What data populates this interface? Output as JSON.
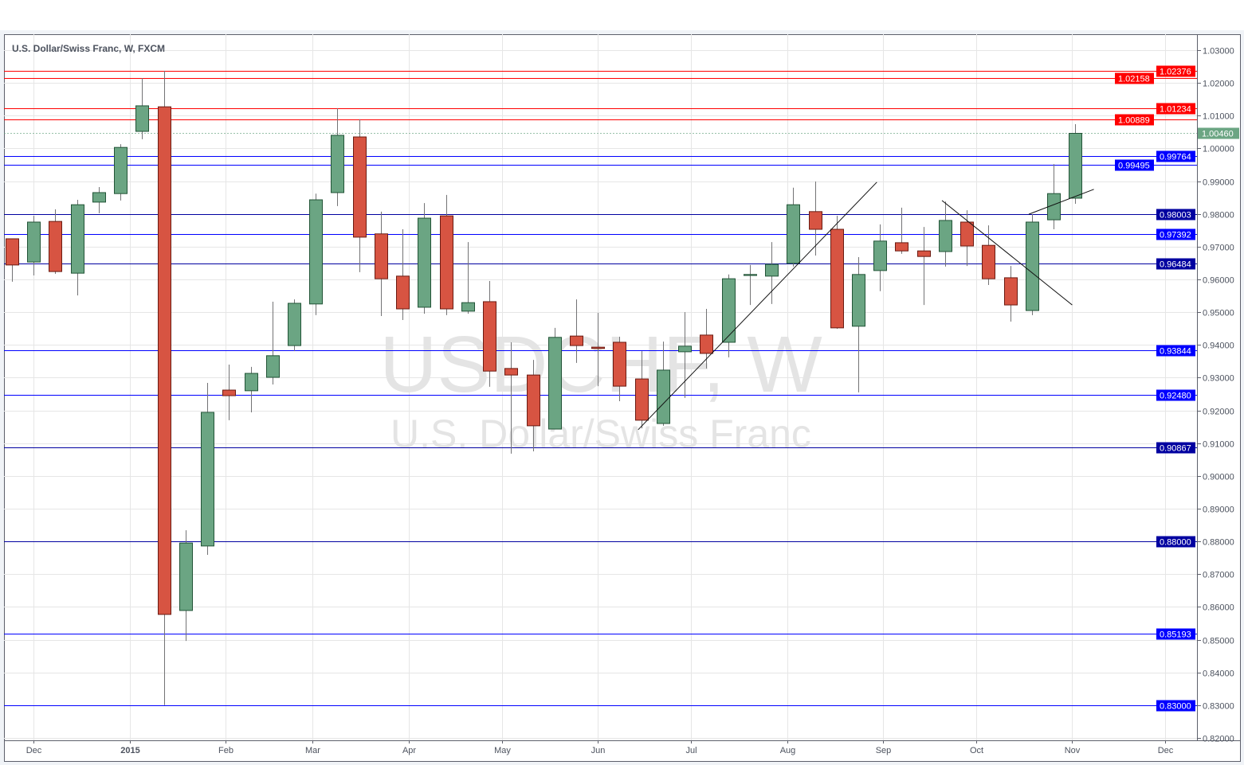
{
  "chart_data": {
    "type": "candlestick",
    "title": "U.S. Dollar/Swiss Franc, W, FXCM",
    "watermark": {
      "symbol": "USDCHF, W",
      "name": "U.S. Dollar/Swiss Franc"
    },
    "ylim": [
      0.8175,
      1.0345
    ],
    "y_ticks": [
      1.03,
      1.02,
      1.01,
      1.0,
      0.99,
      0.98,
      0.97,
      0.96,
      0.95,
      0.94,
      0.93,
      0.92,
      0.91,
      0.9,
      0.89,
      0.88,
      0.87,
      0.86,
      0.85,
      0.84,
      0.83,
      0.82
    ],
    "x_start": "2014-11-24",
    "x_end": "2015-12-13",
    "x_ticks": [
      {
        "date": "2014-12-01",
        "label": "Dec",
        "bold": false
      },
      {
        "date": "2015-01-01",
        "label": "2015",
        "bold": true
      },
      {
        "date": "2015-02-01",
        "label": "Feb",
        "bold": false
      },
      {
        "date": "2015-03-01",
        "label": "Mar",
        "bold": false
      },
      {
        "date": "2015-04-01",
        "label": "Apr",
        "bold": false
      },
      {
        "date": "2015-05-01",
        "label": "May",
        "bold": false
      },
      {
        "date": "2015-06-01",
        "label": "Jun",
        "bold": false
      },
      {
        "date": "2015-07-01",
        "label": "Jul",
        "bold": false
      },
      {
        "date": "2015-08-01",
        "label": "Aug",
        "bold": false
      },
      {
        "date": "2015-09-01",
        "label": "Sep",
        "bold": false
      },
      {
        "date": "2015-10-01",
        "label": "Oct",
        "bold": false
      },
      {
        "date": "2015-11-01",
        "label": "Nov",
        "bold": false
      },
      {
        "date": "2015-12-01",
        "label": "Dec",
        "bold": false
      }
    ],
    "grid": true,
    "candles": [
      [
        0.9724,
        0.9724,
        0.9593,
        0.9644
      ],
      [
        0.9653,
        0.9794,
        0.9612,
        0.9775
      ],
      [
        0.9777,
        0.9814,
        0.9617,
        0.9624
      ],
      [
        0.9619,
        0.9843,
        0.9551,
        0.9828
      ],
      [
        0.9836,
        0.9882,
        0.9802,
        0.9865
      ],
      [
        0.9862,
        1.0013,
        0.9841,
        1.0003
      ],
      [
        1.0052,
        1.0215,
        1.0028,
        1.013
      ],
      [
        1.0127,
        1.0237,
        0.83,
        0.8577
      ],
      [
        0.8589,
        0.8834,
        0.8496,
        0.8795
      ],
      [
        0.8786,
        0.9284,
        0.8759,
        0.9194
      ],
      [
        0.9262,
        0.934,
        0.917,
        0.9245
      ],
      [
        0.926,
        0.9333,
        0.9194,
        0.9313
      ],
      [
        0.9301,
        0.9532,
        0.9279,
        0.9367
      ],
      [
        0.9398,
        0.9539,
        0.9381,
        0.9527
      ],
      [
        0.9525,
        0.9862,
        0.9491,
        0.9843
      ],
      [
        0.9865,
        1.0123,
        0.9824,
        1.004
      ],
      [
        1.0035,
        1.0089,
        0.9622,
        0.9729
      ],
      [
        0.9739,
        0.9807,
        0.9488,
        0.9602
      ],
      [
        0.961,
        0.9753,
        0.9476,
        0.951
      ],
      [
        0.9515,
        0.9833,
        0.9495,
        0.9787
      ],
      [
        0.9794,
        0.9858,
        0.9491,
        0.951
      ],
      [
        0.9503,
        0.9714,
        0.9495,
        0.9529
      ],
      [
        0.9532,
        0.9595,
        0.9272,
        0.932
      ],
      [
        0.9328,
        0.9408,
        0.9068,
        0.9308
      ],
      [
        0.9308,
        0.9354,
        0.9075,
        0.9153
      ],
      [
        0.9143,
        0.9452,
        0.9143,
        0.9423
      ],
      [
        0.9427,
        0.9539,
        0.9345,
        0.9398
      ],
      [
        0.9393,
        0.9498,
        0.9274,
        0.9389
      ],
      [
        0.9408,
        0.9425,
        0.9228,
        0.9274
      ],
      [
        0.9296,
        0.9381,
        0.9145,
        0.917
      ],
      [
        0.916,
        0.941,
        0.9153,
        0.9323
      ],
      [
        0.9379,
        0.95,
        0.9238,
        0.9396
      ],
      [
        0.943,
        0.951,
        0.9328,
        0.9374
      ],
      [
        0.9408,
        0.9615,
        0.9362,
        0.9602
      ],
      [
        0.9612,
        0.9644,
        0.9522,
        0.9615
      ],
      [
        0.961,
        0.9714,
        0.9525,
        0.9646
      ],
      [
        0.9649,
        0.988,
        0.9639,
        0.9828
      ],
      [
        0.9807,
        0.9899,
        0.9673,
        0.9753
      ],
      [
        0.9753,
        0.9794,
        0.9449,
        0.9452
      ],
      [
        0.9457,
        0.9668,
        0.9255,
        0.9615
      ],
      [
        0.9627,
        0.9768,
        0.9564,
        0.9717
      ],
      [
        0.9712,
        0.9819,
        0.9678,
        0.9687
      ],
      [
        0.9687,
        0.976,
        0.9522,
        0.967
      ],
      [
        0.9685,
        0.9838,
        0.9639,
        0.978
      ],
      [
        0.9775,
        0.9811,
        0.9641,
        0.9702
      ],
      [
        0.9704,
        0.9765,
        0.9583,
        0.9602
      ],
      [
        0.9605,
        0.9641,
        0.9471,
        0.9522
      ],
      [
        0.9505,
        0.9799,
        0.9491,
        0.9775
      ],
      [
        0.9782,
        0.9952,
        0.9753,
        0.9862
      ],
      [
        0.9848,
        1.0074,
        0.9831,
        1.0046
      ]
    ],
    "candle_fields": [
      "open",
      "high",
      "low",
      "close"
    ],
    "last_price": {
      "value": 1.0046,
      "label": "1.00460"
    },
    "horizontal_levels": [
      {
        "value": 1.02376,
        "label": "1.02376",
        "color": "#ff0000"
      },
      {
        "value": 1.02158,
        "label": "1.02158",
        "color": "#ff0000"
      },
      {
        "value": 1.01234,
        "label": "1.01234",
        "color": "#ff0000"
      },
      {
        "value": 1.00889,
        "label": "1.00889",
        "color": "#ff0000"
      },
      {
        "value": 0.99764,
        "label": "0.99764",
        "color": "#0000ff"
      },
      {
        "value": 0.99495,
        "label": "0.99495",
        "color": "#0000ff"
      },
      {
        "value": 0.98003,
        "label": "0.98003",
        "color": "#0000a0"
      },
      {
        "value": 0.97392,
        "label": "0.97392",
        "color": "#0000ff"
      },
      {
        "value": 0.96484,
        "label": "0.96484",
        "color": "#0000a0"
      },
      {
        "value": 0.93844,
        "label": "0.93844",
        "color": "#0000ff"
      },
      {
        "value": 0.9248,
        "label": "0.92480",
        "color": "#0000ff"
      },
      {
        "value": 0.90867,
        "label": "0.90867",
        "color": "#0000a0"
      },
      {
        "value": 0.88,
        "label": "0.88000",
        "color": "#0000a0"
      },
      {
        "value": 0.85193,
        "label": "0.85193",
        "color": "#0000ff"
      },
      {
        "value": 0.83,
        "label": "0.83000",
        "color": "#0000ff"
      }
    ],
    "trend_lines": [
      {
        "from": [
          "2015-06-14",
          0.9141
        ],
        "to": [
          "2015-08-30",
          0.9897
        ]
      },
      {
        "from": [
          "2015-09-20",
          0.9841
        ],
        "to": [
          "2015-11-01",
          0.9522
        ]
      },
      {
        "from": [
          "2015-10-18",
          0.9799
        ],
        "to": [
          "2015-11-08",
          0.9875
        ]
      }
    ],
    "colors": {
      "up": "#6ba583",
      "up_border": "#225437",
      "down": "#d75442",
      "down_border": "#6b1b12",
      "wick": "#737375",
      "last_price": "#6ba583"
    }
  }
}
